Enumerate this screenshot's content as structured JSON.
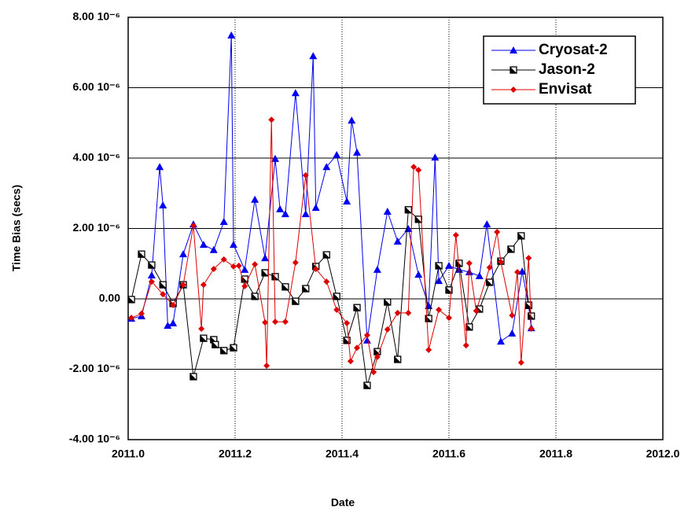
{
  "chart_data": {
    "type": "line",
    "xlabel": "Date",
    "ylabel": "Time Bias (secs)",
    "xlim": [
      2011.0,
      2012.0
    ],
    "xticks": [
      {
        "value": 2011.0,
        "label": "2011.0"
      },
      2011.2,
      2011.4,
      2011.6,
      2011.8,
      {
        "value": 2012.0,
        "label": "2012.0"
      }
    ],
    "ylim": [
      -4e-06,
      8e-06
    ],
    "yticks": [
      {
        "value": -4e-06,
        "label": "-4.00 10⁻⁶"
      },
      {
        "value": -2e-06,
        "label": "-2.00 10⁻⁶"
      },
      {
        "value": 0,
        "label": "0.00"
      },
      {
        "value": 2e-06,
        "label": "2.00 10⁻⁶"
      },
      {
        "value": 4e-06,
        "label": "4.00 10⁻⁶"
      },
      {
        "value": 6e-06,
        "label": "6.00 10⁻⁶"
      },
      {
        "value": 8e-06,
        "label": "8.00 10⁻⁶"
      }
    ],
    "grid": true,
    "legend": "upper right",
    "series": [
      {
        "name": "Cryosat-2",
        "color": "#0000ee",
        "marker": "triangle",
        "x": [
          2011.006,
          2011.025,
          2011.044,
          2011.059,
          2011.065,
          2011.074,
          2011.084,
          2011.103,
          2011.122,
          2011.141,
          2011.16,
          2011.179,
          2011.193,
          2011.197,
          2011.218,
          2011.237,
          2011.256,
          2011.275,
          2011.284,
          2011.294,
          2011.313,
          2011.332,
          2011.346,
          2011.351,
          2011.371,
          2011.39,
          2011.409,
          2011.418,
          2011.428,
          2011.447,
          2011.466,
          2011.485,
          2011.504,
          2011.524,
          2011.543,
          2011.562,
          2011.574,
          2011.581,
          2011.6,
          2011.619,
          2011.638,
          2011.657,
          2011.671,
          2011.697,
          2011.718,
          2011.737,
          2011.749,
          2011.754
        ],
        "values": [
          -5.6e-07,
          -4.9e-07,
          6.7e-07,
          3.75e-06,
          2.66e-06,
          -7.6e-07,
          -6.9e-07,
          1.27e-06,
          2.12e-06,
          1.54e-06,
          1.39e-06,
          2.19e-06,
          7.49e-06,
          1.54e-06,
          8.3e-07,
          2.82e-06,
          1.16e-06,
          3.98e-06,
          2.55e-06,
          2.41e-06,
          5.85e-06,
          2.41e-06,
          6.9e-06,
          2.59e-06,
          3.75e-06,
          4.09e-06,
          2.77e-06,
          5.07e-06,
          4.16e-06,
          -1.18e-06,
          8.3e-07,
          2.48e-06,
          1.63e-06,
          1.99e-06,
          6.9e-07,
          -2e-07,
          4.02e-06,
          5.1e-07,
          9.4e-07,
          8.3e-07,
          7.6e-07,
          6.5e-07,
          2.12e-06,
          -1.21e-06,
          -9.8e-07,
          7.8e-07,
          -2e-07,
          -8.3e-07
        ]
      },
      {
        "name": "Jason-2",
        "color": "#000000",
        "marker": "square",
        "x": [
          2011.006,
          2011.025,
          2011.044,
          2011.065,
          2011.084,
          2011.103,
          2011.122,
          2011.141,
          2011.16,
          2011.163,
          2011.179,
          2011.197,
          2011.218,
          2011.237,
          2011.256,
          2011.275,
          2011.294,
          2011.313,
          2011.332,
          2011.351,
          2011.371,
          2011.39,
          2011.409,
          2011.428,
          2011.447,
          2011.466,
          2011.485,
          2011.504,
          2011.524,
          2011.543,
          2011.562,
          2011.581,
          2011.6,
          2011.619,
          2011.638,
          2011.657,
          2011.676,
          2011.697,
          2011.716,
          2011.735,
          2011.749,
          2011.754
        ],
        "values": [
          -2e-08,
          1.27e-06,
          9.6e-07,
          4e-07,
          -1.3e-07,
          4e-07,
          -2.21e-06,
          -1.12e-06,
          -1.16e-06,
          -1.3e-06,
          -1.47e-06,
          -1.39e-06,
          5.6e-07,
          7e-08,
          7.4e-07,
          6.3e-07,
          3.4e-07,
          -7e-08,
          2.9e-07,
          9.2e-07,
          1.25e-06,
          7e-08,
          -1.18e-06,
          -2.5e-07,
          -2.46e-06,
          -1.5e-06,
          -9e-08,
          -1.72e-06,
          2.53e-06,
          2.26e-06,
          -5.6e-07,
          9.4e-07,
          2.5e-07,
          1.01e-06,
          -8e-07,
          -2.9e-07,
          4.7e-07,
          1.07e-06,
          1.41e-06,
          1.79e-06,
          -1.8e-07,
          -4.9e-07
        ]
      },
      {
        "name": "Envisat",
        "color": "#dd0000",
        "marker": "diamond",
        "x": [
          2011.006,
          2011.025,
          2011.044,
          2011.065,
          2011.084,
          2011.103,
          2011.122,
          2011.137,
          2011.141,
          2011.16,
          2011.179,
          2011.197,
          2011.207,
          2011.218,
          2011.237,
          2011.256,
          2011.259,
          2011.268,
          2011.275,
          2011.294,
          2011.313,
          2011.332,
          2011.351,
          2011.371,
          2011.39,
          2011.409,
          2011.416,
          2011.428,
          2011.447,
          2011.459,
          2011.466,
          2011.485,
          2011.504,
          2011.524,
          2011.534,
          2011.543,
          2011.562,
          2011.581,
          2011.6,
          2011.613,
          2011.632,
          2011.638,
          2011.651,
          2011.676,
          2011.69,
          2011.697,
          2011.718,
          2011.728,
          2011.735,
          2011.749,
          2011.754
        ],
        "values": [
          -5.4e-07,
          -4.2e-07,
          4.9e-07,
          1.3e-07,
          -1.8e-07,
          4e-07,
          2.08e-06,
          -8.5e-07,
          4e-07,
          8.5e-07,
          1.12e-06,
          9.2e-07,
          9.4e-07,
          3.6e-07,
          9.8e-07,
          -6.7e-07,
          -1.9e-06,
          5.09e-06,
          -6.5e-07,
          -6.5e-07,
          1.03e-06,
          3.51e-06,
          8.5e-07,
          4.9e-07,
          -3.1e-07,
          -6.9e-07,
          -1.77e-06,
          -1.39e-06,
          -1.03e-06,
          -2.08e-06,
          -1.65e-06,
          -8.7e-07,
          -4e-07,
          -4e-07,
          3.75e-06,
          3.66e-06,
          -1.45e-06,
          -3.1e-07,
          -5.4e-07,
          1.81e-06,
          -1.32e-06,
          1.01e-06,
          -3.4e-07,
          8.9e-07,
          1.9e-06,
          1.05e-06,
          -4.7e-07,
          7.6e-07,
          -1.81e-06,
          1.16e-06,
          -8.5e-07
        ]
      }
    ]
  }
}
